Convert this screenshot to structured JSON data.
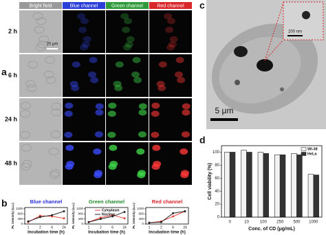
{
  "panels": {
    "a": "a",
    "b": "b",
    "c": "c",
    "d": "d"
  },
  "image_grid": {
    "columns": [
      "Bright field",
      "Blue channel",
      "Green channel",
      "Red channel"
    ],
    "rows": [
      "2 h",
      "6 h",
      "24 h",
      "48 h"
    ],
    "scale_bar": "20 μm"
  },
  "tem_image": {
    "scale_bar": "5 μm",
    "inset_scale_bar": "200 nm"
  },
  "chart_data": [
    {
      "type": "line",
      "title": "Blue channel",
      "title_color": "#2a2ad8",
      "x_label": "Incubation time (h)",
      "y_label": "PL intensity (a.u.)",
      "categories": [
        "1",
        "2",
        "6",
        "24"
      ],
      "ylim": [
        0,
        1300
      ],
      "yticks": [
        0,
        400,
        800,
        1200
      ],
      "series": [
        {
          "color": "#e8413a",
          "values": [
            150,
            650,
            600,
            450
          ]
        },
        {
          "color": "#222222",
          "values": [
            200,
            550,
            700,
            1000
          ]
        }
      ]
    },
    {
      "type": "line",
      "title": "Green channel",
      "title_color": "#1f8a2a",
      "x_label": "Incubation time (h)",
      "y_label": "PL intensity (a.u.)",
      "categories": [
        "1",
        "2",
        "6",
        "24"
      ],
      "ylim": [
        0,
        1300
      ],
      "yticks": [
        0,
        400,
        800,
        1200
      ],
      "legend": "upper right",
      "series": [
        {
          "name": "Cytoplasm",
          "color": "#e8413a",
          "values": [
            150,
            500,
            700,
            450
          ]
        },
        {
          "name": "Nucleus",
          "color": "#222222",
          "values": [
            150,
            400,
            600,
            950
          ]
        }
      ]
    },
    {
      "type": "line",
      "title": "Red channel",
      "title_color": "#d8222a",
      "x_label": "Incubation time (h)",
      "y_label": "PL intensity (a.u.)",
      "categories": [
        "1",
        "2",
        "6",
        "24"
      ],
      "ylim": [
        0,
        1300
      ],
      "yticks": [
        0,
        400,
        800,
        1200
      ],
      "series": [
        {
          "color": "#e8413a",
          "values": [
            100,
            200,
            600,
            1000
          ]
        },
        {
          "color": "#222222",
          "values": [
            100,
            150,
            850,
            1000
          ]
        }
      ]
    },
    {
      "type": "bar",
      "x_label": "Conc. of CD (μg/mL)",
      "y_label": "Cell viability (%)",
      "categories": [
        "0",
        "10",
        "100",
        "250",
        "500",
        "1000"
      ],
      "ylim": [
        0,
        110
      ],
      "yticks": [
        0,
        20,
        40,
        60,
        80,
        100
      ],
      "legend": "upper right",
      "series": [
        {
          "name": "WI-38",
          "color": "#f2f2f2",
          "values": [
            100,
            103,
            100,
            96,
            98,
            66
          ]
        },
        {
          "name": "HeLa",
          "color": "#333333",
          "values": [
            100,
            100,
            98,
            96,
            96,
            65
          ]
        }
      ]
    }
  ]
}
